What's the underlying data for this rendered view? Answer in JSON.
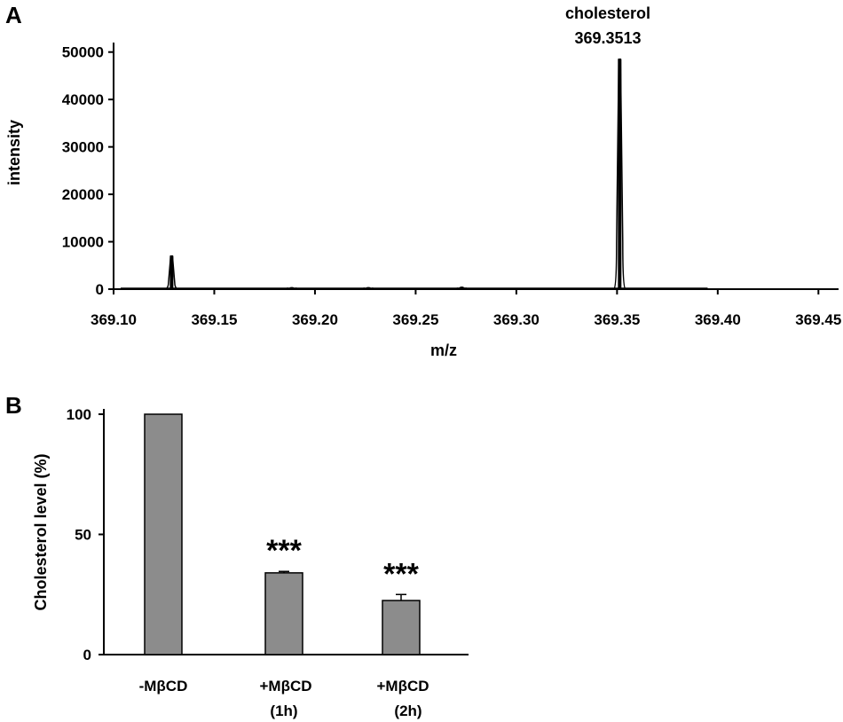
{
  "chart_data": [
    {
      "panel": "A",
      "type": "line",
      "xlabel": "m/z",
      "ylabel": "intensity",
      "xlim": [
        369.1,
        369.46
      ],
      "ylim": [
        0,
        52000
      ],
      "x_ticks": [
        "369.10",
        "369.15",
        "369.20",
        "369.25",
        "369.30",
        "369.35",
        "369.40",
        "369.45"
      ],
      "y_ticks": [
        "0",
        "10000",
        "20000",
        "30000",
        "40000",
        "50000"
      ],
      "annotation": {
        "name": "cholesterol",
        "mz": "369.3513"
      },
      "series": [
        {
          "peaks": [
            {
              "x": 369.1288,
              "y": 7000
            },
            {
              "x": 369.1885,
              "y": 300
            },
            {
              "x": 369.2265,
              "y": 300
            },
            {
              "x": 369.2729,
              "y": 400
            },
            {
              "x": 369.3513,
              "y": 48500
            }
          ]
        }
      ],
      "grid": false
    },
    {
      "panel": "B",
      "type": "bar",
      "ylabel": "Cholesterol level (%)",
      "ylim": [
        0,
        100
      ],
      "y_ticks": [
        "0",
        "50",
        "100"
      ],
      "categories": [
        {
          "line1": "-MβCD",
          "line2": ""
        },
        {
          "line1": "+MβCD",
          "line2": "(1h)"
        },
        {
          "line1": "+MβCD",
          "line2": "(2h)"
        }
      ],
      "values": [
        100,
        34,
        22.5
      ],
      "errors": [
        0,
        0.6,
        2.5
      ],
      "significance": [
        "",
        "***",
        "***"
      ],
      "bar_color": "#8c8c8c",
      "grid": false
    }
  ]
}
